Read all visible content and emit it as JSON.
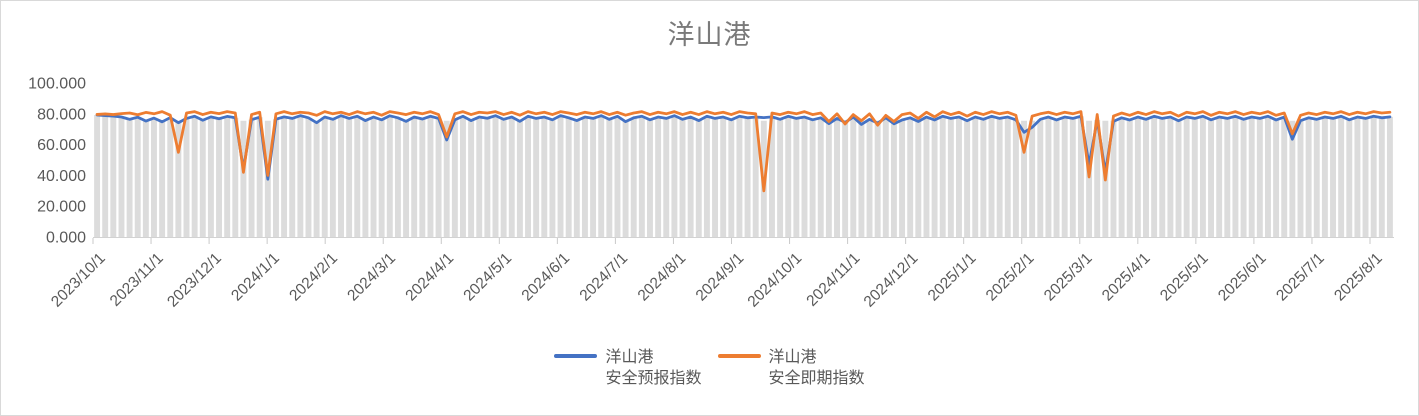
{
  "window": {
    "background": "#ffffff",
    "border_color": "#d9d9d9"
  },
  "legend": {
    "entries": [
      {
        "line1": "洋山港",
        "line2": "安全预报指数"
      },
      {
        "line1": "洋山港",
        "line2": "安全即期指数"
      }
    ]
  },
  "chart_data": {
    "type": "line",
    "title": "洋山港",
    "title_color": "#7a7a7a",
    "legend_position": "bottom",
    "grid": false,
    "x_axis": {
      "label_color": "#595959",
      "tick_labels": [
        "2023/10/1",
        "2023/11/1",
        "2023/12/1",
        "2024/1/1",
        "2024/2/1",
        "2024/3/1",
        "2024/4/1",
        "2024/5/1",
        "2024/6/1",
        "2024/7/1",
        "2024/8/1",
        "2024/9/1",
        "2024/10/1",
        "2024/11/1",
        "2024/12/1",
        "2025/1/1",
        "2025/2/1",
        "2025/3/1",
        "2025/4/1",
        "2025/5/1",
        "2025/6/1",
        "2025/7/1",
        "2025/8/1"
      ]
    },
    "y_axis": {
      "label_color": "#595959",
      "range": [
        0,
        100
      ],
      "tick_values": [
        0,
        20,
        40,
        60,
        80,
        100
      ],
      "tick_labels": [
        "0.000",
        "20.000",
        "40.000",
        "60.000",
        "80.000",
        "100.000"
      ]
    },
    "axis_line_color": "#d2d2d2",
    "tick_mark_color": "#c9c9c9",
    "backdrop_bars": {
      "color": "#dcdcdc",
      "note": "dense gray daily columns behind the lines; tops stay near the ~75-80 level across all dates",
      "derive": "max(75.5, min(forecast, spot))"
    },
    "series": [
      {
        "name": "洋山港安全预报指数",
        "color": "#4472C4",
        "values": [
          79.2,
          78.8,
          78.5,
          77.9,
          76.4,
          77.8,
          75.3,
          77.2,
          74.8,
          77.5,
          74.2,
          77.0,
          78.4,
          75.8,
          78.0,
          76.8,
          78.3,
          77.4,
          44.0,
          76.2,
          77.8,
          37.5,
          76.5,
          78.0,
          77.0,
          78.8,
          77.4,
          74.2,
          77.9,
          76.4,
          78.8,
          77.0,
          78.4,
          75.6,
          77.9,
          76.1,
          78.7,
          77.4,
          75.1,
          77.9,
          76.6,
          78.4,
          77.0,
          63.0,
          76.1,
          78.4,
          75.6,
          77.9,
          77.1,
          78.8,
          76.4,
          77.9,
          75.1,
          78.4,
          77.0,
          77.9,
          76.1,
          78.8,
          77.4,
          75.6,
          77.9,
          77.0,
          78.8,
          76.4,
          78.4,
          74.9,
          77.4,
          78.4,
          76.1,
          77.9,
          77.0,
          78.8,
          76.4,
          77.9,
          75.6,
          78.4,
          77.0,
          77.9,
          76.1,
          78.4,
          77.4,
          77.9,
          77.5,
          78.0,
          76.4,
          78.4,
          77.0,
          77.9,
          76.1,
          77.4,
          73.6,
          77.0,
          74.4,
          77.9,
          73.1,
          76.4,
          74.0,
          77.4,
          73.5,
          76.0,
          77.4,
          75.0,
          77.9,
          76.0,
          78.4,
          77.0,
          77.9,
          75.5,
          77.9,
          76.4,
          78.4,
          77.0,
          77.9,
          76.1,
          68.0,
          71.2,
          76.4,
          77.9,
          76.0,
          77.9,
          77.0,
          78.4,
          47.0,
          76.0,
          42.0,
          75.1,
          77.4,
          76.0,
          77.9,
          76.4,
          78.4,
          77.0,
          77.9,
          75.5,
          77.9,
          77.0,
          78.4,
          76.1,
          77.9,
          77.0,
          78.4,
          76.4,
          77.9,
          77.0,
          78.4,
          76.0,
          77.9,
          63.5,
          75.5,
          77.4,
          76.4,
          77.9,
          77.0,
          78.4,
          76.1,
          77.9,
          77.0,
          78.4,
          77.4,
          78.0
        ]
      },
      {
        "name": "洋山港安全即期指数",
        "color": "#ED7D31",
        "values": [
          79.6,
          79.9,
          79.5,
          80.1,
          80.5,
          79.4,
          80.9,
          80.0,
          81.4,
          79.1,
          55.0,
          80.5,
          81.4,
          79.5,
          81.0,
          80.1,
          81.4,
          80.5,
          42.0,
          79.5,
          81.0,
          40.0,
          80.0,
          81.4,
          80.0,
          81.0,
          80.5,
          79.0,
          81.4,
          80.0,
          81.0,
          79.5,
          81.4,
          80.0,
          81.0,
          79.1,
          81.4,
          80.5,
          79.5,
          81.0,
          80.0,
          81.4,
          79.5,
          65.0,
          80.0,
          81.4,
          79.5,
          81.0,
          80.5,
          81.4,
          79.5,
          81.0,
          79.1,
          81.4,
          80.0,
          81.0,
          79.5,
          81.4,
          80.5,
          79.5,
          81.0,
          80.0,
          81.4,
          79.5,
          81.0,
          79.1,
          80.5,
          81.4,
          79.5,
          81.0,
          80.0,
          81.4,
          79.5,
          81.0,
          79.5,
          81.4,
          80.0,
          81.0,
          79.5,
          81.4,
          80.5,
          80.0,
          30.0,
          80.5,
          79.5,
          81.0,
          80.0,
          81.4,
          79.5,
          80.5,
          75.0,
          80.0,
          73.4,
          79.5,
          75.5,
          80.0,
          72.6,
          79.0,
          75.0,
          79.5,
          80.5,
          77.0,
          81.0,
          78.0,
          81.4,
          79.5,
          81.0,
          78.5,
          81.0,
          79.5,
          81.4,
          80.0,
          81.0,
          79.0,
          55.0,
          78.5,
          80.0,
          81.0,
          79.5,
          81.0,
          80.0,
          81.4,
          39.0,
          79.5,
          37.0,
          78.5,
          80.5,
          79.0,
          81.0,
          79.5,
          81.4,
          80.0,
          81.0,
          78.5,
          81.0,
          80.0,
          81.4,
          79.0,
          81.0,
          80.0,
          81.4,
          79.5,
          81.0,
          80.0,
          81.4,
          79.0,
          80.5,
          67.0,
          79.0,
          80.5,
          79.5,
          81.0,
          80.0,
          81.4,
          79.5,
          81.0,
          80.0,
          81.4,
          80.5,
          81.0
        ]
      }
    ]
  }
}
